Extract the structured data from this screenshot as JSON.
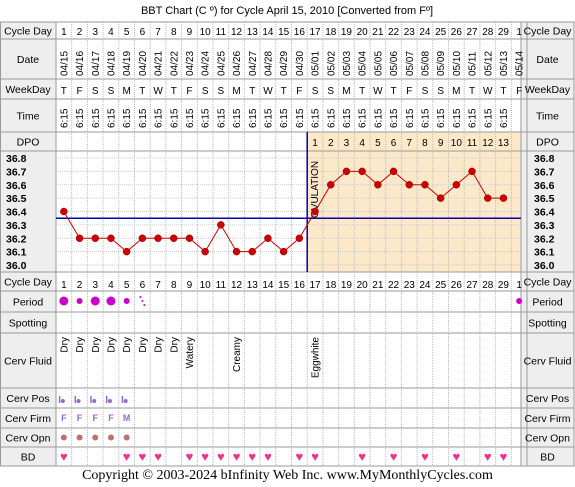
{
  "title": "BBT Chart (C º) for Cycle April 15, 2010  [Converted from Fº]",
  "copyright": "Copyright © 2003-2024 bInfinity Web Inc.    www.MyMonthlyCycles.com",
  "row_labels": {
    "cycle_day": "Cycle Day",
    "date": "Date",
    "weekday": "WeekDay",
    "time": "Time",
    "dpo": "DPO",
    "period": "Period",
    "spotting": "Spotting",
    "cerv_fluid": "Cerv Fluid",
    "cerv_pos": "Cerv Pos",
    "cerv_firm": "Cerv Firm",
    "cerv_opn": "Cerv Opn",
    "bd": "BD"
  },
  "cycle_days": [
    "1",
    "2",
    "3",
    "4",
    "5",
    "6",
    "7",
    "8",
    "9",
    "10",
    "11",
    "12",
    "13",
    "14",
    "15",
    "16",
    "17",
    "18",
    "19",
    "20",
    "21",
    "22",
    "23",
    "24",
    "25",
    "26",
    "27",
    "28",
    "29",
    "1"
  ],
  "dates": [
    "04/15",
    "04/16",
    "04/17",
    "04/18",
    "04/19",
    "04/20",
    "04/21",
    "04/22",
    "04/23",
    "04/24",
    "04/25",
    "04/26",
    "04/27",
    "04/28",
    "04/29",
    "04/30",
    "05/01",
    "05/02",
    "05/03",
    "05/04",
    "05/05",
    "05/06",
    "05/07",
    "05/08",
    "05/09",
    "05/10",
    "05/11",
    "05/12",
    "05/13",
    "05/14"
  ],
  "weekdays": [
    "T",
    "F",
    "S",
    "S",
    "M",
    "T",
    "W",
    "T",
    "F",
    "S",
    "S",
    "M",
    "T",
    "W",
    "T",
    "F",
    "S",
    "S",
    "M",
    "T",
    "W",
    "T",
    "F",
    "S",
    "S",
    "M",
    "T",
    "W",
    "T",
    "F"
  ],
  "times": [
    "6:15",
    "6:15",
    "6:15",
    "6:15",
    "6:15",
    "6:15",
    "6:15",
    "6:15",
    "6:15",
    "6:15",
    "6:15",
    "6:15",
    "6:15",
    "6:15",
    "6:15",
    "6:15",
    "6:15",
    "6:15",
    "6:15",
    "6:15",
    "6:15",
    "6:15",
    "6:15",
    "6:15",
    "6:15",
    "6:15",
    "6:15",
    "6:15",
    "6:15",
    ""
  ],
  "dpo": [
    "",
    "",
    "",
    "",
    "",
    "",
    "",
    "",
    "",
    "",
    "",
    "",
    "",
    "",
    "",
    "",
    "1",
    "2",
    "3",
    "4",
    "5",
    "6",
    "7",
    "8",
    "9",
    "10",
    "11",
    "12",
    "13",
    ""
  ],
  "period": [
    "heavy",
    "medium",
    "heavy",
    "heavy",
    "medium",
    "spotting",
    "",
    "",
    "",
    "",
    "",
    "",
    "",
    "",
    "",
    "",
    "",
    "",
    "",
    "",
    "",
    "",
    "",
    "",
    "",
    "",
    "",
    "",
    "",
    "medium"
  ],
  "cerv_fluid": [
    "Dry",
    "Dry",
    "Dry",
    "Dry",
    "Dry",
    "Dry",
    "Dry",
    "Dry",
    "Watery",
    "",
    "",
    "Creamy",
    "",
    "",
    "",
    "",
    "Eggwhite",
    "",
    "",
    "",
    "",
    "",
    "",
    "",
    "",
    "",
    "",
    "",
    "",
    ""
  ],
  "cerv_pos": [
    "low",
    "low",
    "low",
    "low",
    "low",
    "",
    "",
    "",
    "",
    "",
    "",
    "",
    "",
    "",
    "",
    "",
    "",
    "",
    "",
    "",
    "",
    "",
    "",
    "",
    "",
    "",
    "",
    "",
    "",
    ""
  ],
  "cerv_firm": [
    "F",
    "F",
    "F",
    "F",
    "M",
    "",
    "",
    "",
    "",
    "",
    "",
    "",
    "",
    "",
    "",
    "",
    "",
    "",
    "",
    "",
    "",
    "",
    "",
    "",
    "",
    "",
    "",
    "",
    "",
    ""
  ],
  "cerv_opn": [
    "closed",
    "closed",
    "closed",
    "closed",
    "closed",
    "",
    "",
    "",
    "",
    "",
    "",
    "",
    "",
    "",
    "",
    "",
    "",
    "",
    "",
    "",
    "",
    "",
    "",
    "",
    "",
    "",
    "",
    "",
    "",
    ""
  ],
  "bd": [
    true,
    false,
    false,
    false,
    true,
    true,
    true,
    false,
    true,
    true,
    true,
    true,
    true,
    true,
    false,
    true,
    true,
    false,
    false,
    true,
    false,
    true,
    false,
    true,
    false,
    true,
    false,
    true,
    true,
    false
  ],
  "colors": {
    "border": "#999999",
    "label_bg": "#eeeeee",
    "luteal_bg": "#fde9c9",
    "pre_bg": "#ffffff",
    "temp_line": "#cc0000",
    "coverline": "#0000aa",
    "ovulation": "#0000aa",
    "period": "#cc00cc",
    "cerv": "#9966cc",
    "bd": "#ee3388"
  },
  "chart_data": {
    "type": "line",
    "title": "BBT Chart (C º) for Cycle April 15, 2010  [Converted from Fº]",
    "xlabel": "Cycle Day",
    "ylabel": "",
    "x": [
      1,
      2,
      3,
      4,
      5,
      6,
      7,
      8,
      9,
      10,
      11,
      12,
      13,
      14,
      15,
      16,
      17,
      18,
      19,
      20,
      21,
      22,
      23,
      24,
      25,
      26,
      27,
      28,
      29
    ],
    "series": [
      {
        "values": [
          36.4,
          36.2,
          36.2,
          36.2,
          36.1,
          36.2,
          36.2,
          36.2,
          36.2,
          36.1,
          36.3,
          36.1,
          36.1,
          36.2,
          36.1,
          36.2,
          36.4,
          36.6,
          36.7,
          36.7,
          36.6,
          36.7,
          36.6,
          36.6,
          36.5,
          36.6,
          36.7,
          36.5,
          36.5
        ]
      }
    ],
    "ylim": [
      36.0,
      36.8
    ],
    "yticks": [
      "36.8",
      "36.7",
      "36.6",
      "36.5",
      "36.4",
      "36.3",
      "36.2",
      "36.1",
      "36.0"
    ],
    "coverline": 36.35,
    "ovulation_day": 16,
    "ovulation_label": "OVULATION",
    "grid": true
  }
}
